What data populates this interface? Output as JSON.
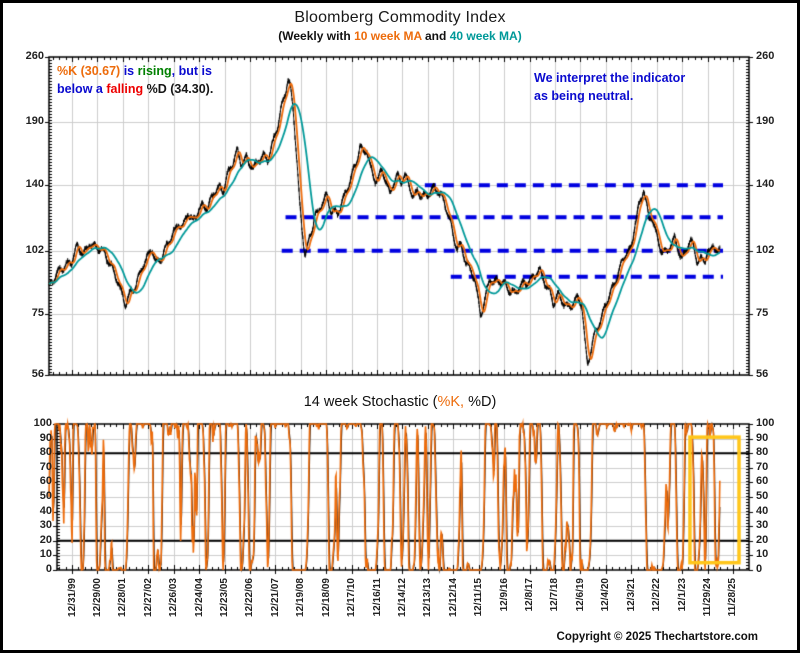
{
  "page": {
    "copyright": "Copyright © 2025 Thechartstore.com"
  },
  "colors": {
    "price": "#000000",
    "ma10": "#ED6C0C",
    "ma40": "#009999",
    "dashed_line_blue": "#0000E0",
    "annotation_blue": "#0A0ACF",
    "rising_green": "#008000",
    "falling_red": "#EE0000",
    "highlight_yellow": "#FFC61A",
    "grid_gray": "#CCCCCC"
  },
  "main_chart": {
    "title": "Bloomberg Commodity Index",
    "subtitle_segments": [
      {
        "text": "(Weekly with ",
        "color": "#111111"
      },
      {
        "text": "10 week MA",
        "color": "#ED6C0C"
      },
      {
        "text": " and ",
        "color": "#111111"
      },
      {
        "text": "40 week MA)",
        "color": "#009999"
      }
    ],
    "y_ticks": [
      260,
      190,
      140,
      102,
      75,
      56
    ],
    "annotation_status": {
      "lines": [
        [
          {
            "text": "%K (30.67)",
            "color": "#ED6C0C"
          },
          {
            "text": " is ",
            "color": "#0A0ACF"
          },
          {
            "text": "rising",
            "color": "#008000"
          },
          {
            "text": ", but is",
            "color": "#0A0ACF"
          }
        ],
        [
          {
            "text": "below a ",
            "color": "#0A0ACF"
          },
          {
            "text": "falling",
            "color": "#EE0000"
          },
          {
            "text": " %D (34.30).",
            "color": "#161616"
          }
        ]
      ]
    },
    "annotation_interpretation": {
      "lines": [
        [
          {
            "text": "We interpret the indicator",
            "color": "#0A0ACF"
          }
        ],
        [
          {
            "text": "as being neutral.",
            "color": "#0A0ACF"
          }
        ]
      ]
    }
  },
  "stoch_chart": {
    "title_segments": [
      {
        "text": "14 week Stochastic (",
        "color": "#111111"
      },
      {
        "text": "%K,",
        "color": "#ED6C0C"
      },
      {
        "text": " %D)",
        "color": "#111111"
      }
    ],
    "y_ticks": [
      100,
      90,
      80,
      70,
      60,
      50,
      40,
      30,
      20,
      10,
      0
    ]
  },
  "chart_data": [
    {
      "type": "line",
      "title": "Bloomberg Commodity Index",
      "subtitle": "(Weekly with 10 week MA and 40 week MA)",
      "y_scale": "log",
      "ylim": [
        56,
        260
      ],
      "y_ticks": [
        260,
        190,
        140,
        102,
        75,
        56
      ],
      "x_tick_labels": [
        "12/31/99",
        "12/29/00",
        "12/28/01",
        "12/27/02",
        "12/26/03",
        "12/24/04",
        "12/23/05",
        "12/22/06",
        "12/21/07",
        "12/19/08",
        "12/18/09",
        "12/17/10",
        "12/16/11",
        "12/14/12",
        "12/13/13",
        "12/12/14",
        "12/11/15",
        "12/9/16",
        "12/8/17",
        "12/7/18",
        "12/6/19",
        "12/4/20",
        "12/3/21",
        "12/2/22",
        "12/1/23",
        "11/29/24",
        "11/28/25"
      ],
      "grid": true,
      "legend_position": "subtitle",
      "series": [
        {
          "name": "Bloomberg Commodity Index (weekly)",
          "color": "#000000",
          "keypoints": [
            [
              1999.1,
              86
            ],
            [
              1999.4,
              90
            ],
            [
              1999.75,
              96
            ],
            [
              2000.0,
              98
            ],
            [
              2000.2,
              103
            ],
            [
              2000.45,
              100
            ],
            [
              2000.7,
              107
            ],
            [
              2000.9,
              104
            ],
            [
              2001.1,
              102
            ],
            [
              2001.3,
              100
            ],
            [
              2001.55,
              96
            ],
            [
              2001.75,
              90
            ],
            [
              2001.95,
              82
            ],
            [
              2002.1,
              78
            ],
            [
              2002.3,
              84
            ],
            [
              2002.55,
              88
            ],
            [
              2002.8,
              94
            ],
            [
              2003.0,
              99
            ],
            [
              2003.15,
              104
            ],
            [
              2003.3,
              97
            ],
            [
              2003.55,
              99
            ],
            [
              2003.8,
              105
            ],
            [
              2004.0,
              112
            ],
            [
              2004.2,
              118
            ],
            [
              2004.35,
              114
            ],
            [
              2004.55,
              121
            ],
            [
              2004.75,
              117
            ],
            [
              2004.95,
              125
            ],
            [
              2005.15,
              128
            ],
            [
              2005.35,
              124
            ],
            [
              2005.6,
              135
            ],
            [
              2005.8,
              140
            ],
            [
              2005.95,
              137
            ],
            [
              2006.1,
              146
            ],
            [
              2006.3,
              152
            ],
            [
              2006.5,
              166
            ],
            [
              2006.65,
              157
            ],
            [
              2006.85,
              161
            ],
            [
              2007.0,
              154
            ],
            [
              2007.15,
              150
            ],
            [
              2007.35,
              158
            ],
            [
              2007.55,
              164
            ],
            [
              2007.7,
              160
            ],
            [
              2007.9,
              170
            ],
            [
              2008.1,
              185
            ],
            [
              2008.25,
              205
            ],
            [
              2008.4,
              222
            ],
            [
              2008.5,
              238
            ],
            [
              2008.6,
              224
            ],
            [
              2008.72,
              196
            ],
            [
              2008.85,
              155
            ],
            [
              2008.95,
              128
            ],
            [
              2009.05,
              112
            ],
            [
              2009.17,
              101
            ],
            [
              2009.3,
              107
            ],
            [
              2009.45,
              114
            ],
            [
              2009.55,
              122
            ],
            [
              2009.7,
              120
            ],
            [
              2009.85,
              128
            ],
            [
              2010.0,
              134
            ],
            [
              2010.15,
              127
            ],
            [
              2010.3,
              124
            ],
            [
              2010.45,
              121
            ],
            [
              2010.6,
              127
            ],
            [
              2010.75,
              133
            ],
            [
              2010.9,
              142
            ],
            [
              2011.05,
              151
            ],
            [
              2011.2,
              158
            ],
            [
              2011.33,
              169
            ],
            [
              2011.45,
              161
            ],
            [
              2011.6,
              165
            ],
            [
              2011.75,
              153
            ],
            [
              2011.9,
              146
            ],
            [
              2012.05,
              145
            ],
            [
              2012.2,
              150
            ],
            [
              2012.35,
              141
            ],
            [
              2012.5,
              133
            ],
            [
              2012.65,
              143
            ],
            [
              2012.8,
              148
            ],
            [
              2012.95,
              143
            ],
            [
              2013.1,
              145
            ],
            [
              2013.3,
              137
            ],
            [
              2013.45,
              132
            ],
            [
              2013.6,
              138
            ],
            [
              2013.8,
              133
            ],
            [
              2014.0,
              132
            ],
            [
              2014.2,
              137
            ],
            [
              2014.4,
              138
            ],
            [
              2014.55,
              134
            ],
            [
              2014.7,
              126
            ],
            [
              2014.85,
              118
            ],
            [
              2015.0,
              108
            ],
            [
              2015.15,
              104
            ],
            [
              2015.3,
              106
            ],
            [
              2015.5,
              97
            ],
            [
              2015.7,
              91
            ],
            [
              2015.85,
              88
            ],
            [
              2016.0,
              79
            ],
            [
              2016.08,
              75
            ],
            [
              2016.25,
              82
            ],
            [
              2016.45,
              89
            ],
            [
              2016.6,
              86
            ],
            [
              2016.8,
              88
            ],
            [
              2017.0,
              88
            ],
            [
              2017.2,
              85
            ],
            [
              2017.4,
              82
            ],
            [
              2017.6,
              85
            ],
            [
              2017.8,
              88
            ],
            [
              2018.0,
              89
            ],
            [
              2018.2,
              90
            ],
            [
              2018.4,
              92
            ],
            [
              2018.6,
              88
            ],
            [
              2018.8,
              85
            ],
            [
              2018.95,
              79
            ],
            [
              2019.1,
              82
            ],
            [
              2019.3,
              79
            ],
            [
              2019.5,
              78
            ],
            [
              2019.7,
              80
            ],
            [
              2019.9,
              81
            ],
            [
              2020.05,
              78
            ],
            [
              2020.18,
              65
            ],
            [
              2020.28,
              59
            ],
            [
              2020.45,
              65
            ],
            [
              2020.6,
              70
            ],
            [
              2020.8,
              72
            ],
            [
              2021.0,
              78
            ],
            [
              2021.2,
              84
            ],
            [
              2021.4,
              90
            ],
            [
              2021.6,
              95
            ],
            [
              2021.75,
              99
            ],
            [
              2021.9,
              101
            ],
            [
              2022.0,
              103
            ],
            [
              2022.15,
              118
            ],
            [
              2022.3,
              128
            ],
            [
              2022.4,
              131
            ],
            [
              2022.48,
              138
            ],
            [
              2022.58,
              128
            ],
            [
              2022.7,
              117
            ],
            [
              2022.82,
              120
            ],
            [
              2022.95,
              113
            ],
            [
              2023.1,
              106
            ],
            [
              2023.25,
              102
            ],
            [
              2023.4,
              100
            ],
            [
              2023.55,
              104
            ],
            [
              2023.7,
              108
            ],
            [
              2023.85,
              104
            ],
            [
              2024.0,
              99
            ],
            [
              2024.15,
              102
            ],
            [
              2024.3,
              106
            ],
            [
              2024.45,
              103
            ],
            [
              2024.6,
              97
            ],
            [
              2024.75,
              99
            ],
            [
              2024.9,
              98
            ],
            [
              2025.0,
              102
            ],
            [
              2025.1,
              100
            ],
            [
              2025.22,
              104
            ],
            [
              2025.32,
              102
            ],
            [
              2025.42,
              100
            ],
            [
              2025.5,
              103
            ]
          ]
        },
        {
          "name": "10 week MA",
          "color": "#ED6C0C",
          "derived": "sma10 of weekly close"
        },
        {
          "name": "40 week MA",
          "color": "#009999",
          "derived": "sma40 of weekly close"
        }
      ],
      "support_resistance_lines": [
        {
          "value": 140,
          "t_start": 2013.88,
          "t_end": 2025.61,
          "color": "#0000E0",
          "style": "dashed"
        },
        {
          "value": 120,
          "t_start": 2008.4,
          "t_end": 2025.61,
          "color": "#0000E0",
          "style": "dashed"
        },
        {
          "value": 102,
          "t_start": 2008.25,
          "t_end": 2025.61,
          "color": "#0000E0",
          "style": "dashed"
        },
        {
          "value": 90,
          "t_start": 2014.9,
          "t_end": 2025.61,
          "color": "#0000E0",
          "style": "dashed"
        }
      ]
    },
    {
      "type": "line",
      "title": "14 week Stochastic (%K, %D)",
      "ylim": [
        0,
        100
      ],
      "y_ticks": [
        100,
        90,
        80,
        70,
        60,
        50,
        40,
        30,
        20,
        10,
        0
      ],
      "x_labels_shared": true,
      "grid": true,
      "hlines": [
        20,
        80
      ],
      "series": [
        {
          "name": "%K",
          "color": "#ED6C0C",
          "derived": "14-week stochastic of weekly close"
        },
        {
          "name": "%D",
          "color": "#1b1b1b",
          "derived": "3-week SMA of %K"
        }
      ],
      "latest_values": {
        "K": 30.67,
        "D": 34.3
      },
      "highlight_box": {
        "t_start": 2024.31,
        "t_end": 2026.24,
        "y_low": 5,
        "y_high": 91,
        "color": "#FFC61A"
      }
    }
  ]
}
